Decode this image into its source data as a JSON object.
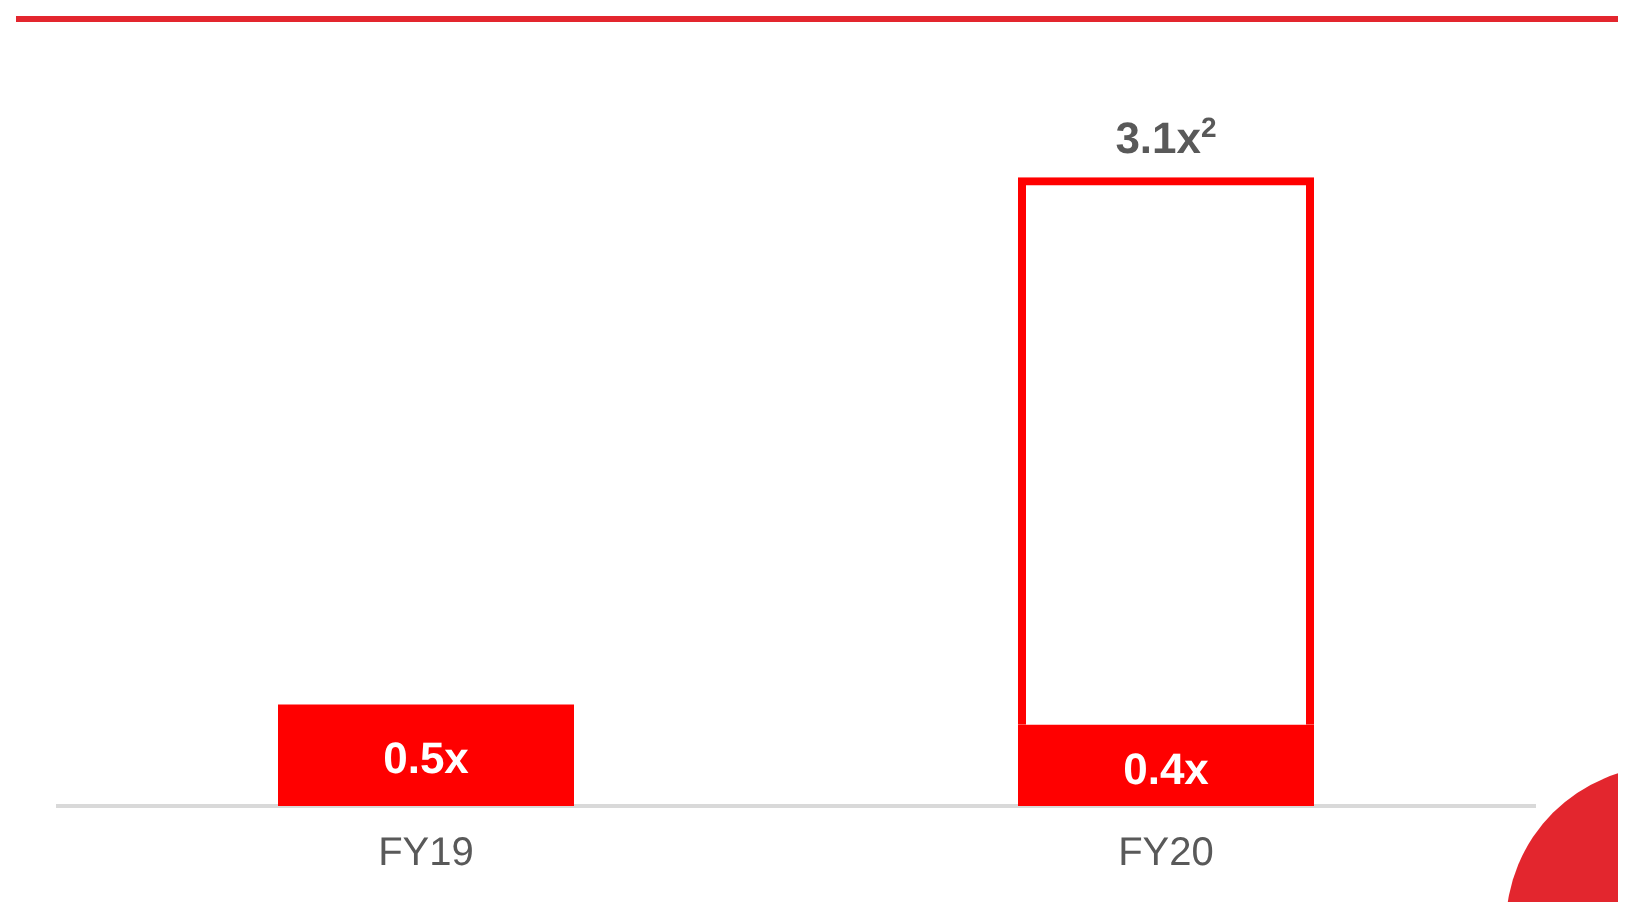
{
  "chart_data": {
    "type": "bar",
    "stacked": true,
    "categories": [
      "FY19",
      "FY20"
    ],
    "series": [
      {
        "color": "#ff0000",
        "values": [
          0.5,
          0.4
        ],
        "value_labels": [
          "0.5x",
          "0.4x"
        ]
      },
      {
        "color": "#ff0000",
        "values": [
          null,
          2.7
        ],
        "line_style": "dashed"
      }
    ],
    "totals": [
      null,
      "3.1x$^{2}$"
    ],
    "grid": false,
    "legend": false
  }
}
